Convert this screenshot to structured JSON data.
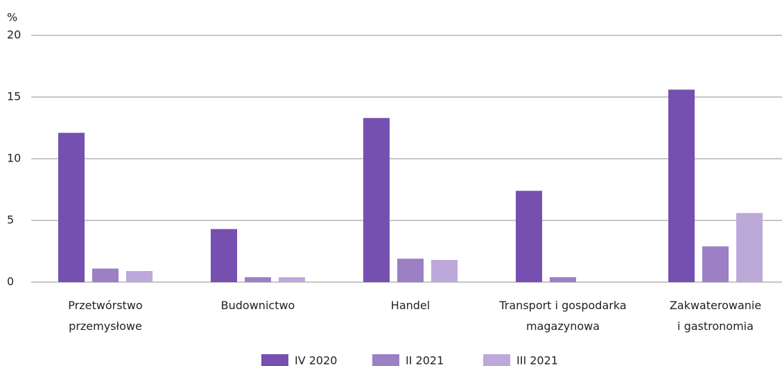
{
  "chart_data": {
    "type": "bar",
    "y_label": "%",
    "categories": [
      "Przetwórstwo\nprzemysłowe",
      "Budownictwo",
      "Handel",
      "Transport i gospodarka\nmagazynowa",
      "Zakwaterowanie\ni gastronomia"
    ],
    "series": [
      {
        "name": "IV 2020",
        "color": "#7550b0",
        "values": [
          12.1,
          4.3,
          13.3,
          7.4,
          15.6
        ]
      },
      {
        "name": "II 2021",
        "color": "#9b80c4",
        "values": [
          1.1,
          0.4,
          1.9,
          0.4,
          2.9
        ]
      },
      {
        "name": "III 2021",
        "color": "#bca9d9",
        "values": [
          0.9,
          0.4,
          1.8,
          null,
          5.6
        ]
      }
    ],
    "ylim": [
      0,
      20
    ],
    "yticks": [
      0,
      5,
      10,
      15,
      20
    ],
    "grid": true,
    "legend": "bottom"
  }
}
